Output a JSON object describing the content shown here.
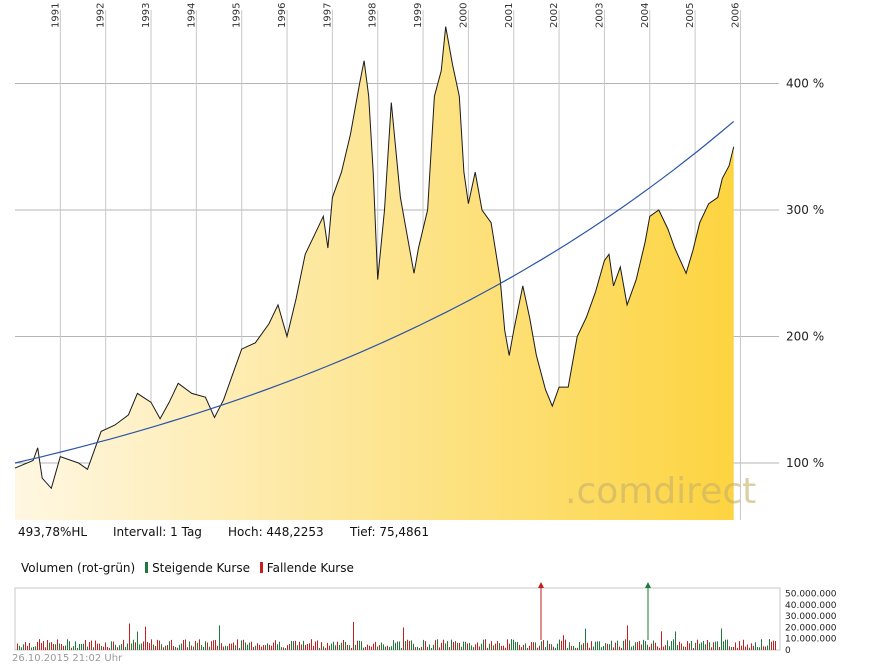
{
  "chart_data": [
    {
      "type": "area",
      "years": [
        "1991",
        "1992",
        "1993",
        "1994",
        "1995",
        "1996",
        "1997",
        "1998",
        "1999",
        "2000",
        "2001",
        "2002",
        "2003",
        "2004",
        "2005",
        "2006"
      ],
      "ytick_labels": [
        "100 %",
        "200 %",
        "300 %",
        "400 %"
      ],
      "ylim": [
        60,
        450
      ],
      "points": [
        [
          1990.0,
          96
        ],
        [
          1990.4,
          102
        ],
        [
          1990.5,
          112
        ],
        [
          1990.6,
          88
        ],
        [
          1990.8,
          80
        ],
        [
          1991.0,
          105
        ],
        [
          1991.4,
          100
        ],
        [
          1991.6,
          95
        ],
        [
          1991.9,
          125
        ],
        [
          1992.2,
          130
        ],
        [
          1992.5,
          138
        ],
        [
          1992.7,
          155
        ],
        [
          1993.0,
          148
        ],
        [
          1993.2,
          135
        ],
        [
          1993.4,
          148
        ],
        [
          1993.6,
          163
        ],
        [
          1993.9,
          155
        ],
        [
          1994.2,
          152
        ],
        [
          1994.4,
          136
        ],
        [
          1994.6,
          150
        ],
        [
          1994.8,
          170
        ],
        [
          1995.0,
          190
        ],
        [
          1995.3,
          195
        ],
        [
          1995.6,
          210
        ],
        [
          1995.8,
          225
        ],
        [
          1996.0,
          200
        ],
        [
          1996.2,
          230
        ],
        [
          1996.4,
          265
        ],
        [
          1996.6,
          280
        ],
        [
          1996.8,
          295
        ],
        [
          1996.9,
          270
        ],
        [
          1997.0,
          310
        ],
        [
          1997.2,
          330
        ],
        [
          1997.4,
          360
        ],
        [
          1997.6,
          400
        ],
        [
          1997.7,
          418
        ],
        [
          1997.8,
          390
        ],
        [
          1997.9,
          330
        ],
        [
          1998.0,
          245
        ],
        [
          1998.15,
          300
        ],
        [
          1998.3,
          385
        ],
        [
          1998.5,
          310
        ],
        [
          1998.6,
          290
        ],
        [
          1998.8,
          250
        ],
        [
          1998.9,
          270
        ],
        [
          1999.1,
          300
        ],
        [
          1999.25,
          390
        ],
        [
          1999.4,
          410
        ],
        [
          1999.5,
          445
        ],
        [
          1999.65,
          415
        ],
        [
          1999.8,
          390
        ],
        [
          1999.9,
          330
        ],
        [
          2000.0,
          305
        ],
        [
          2000.15,
          330
        ],
        [
          2000.3,
          300
        ],
        [
          2000.5,
          290
        ],
        [
          2000.7,
          245
        ],
        [
          2000.8,
          205
        ],
        [
          2000.9,
          185
        ],
        [
          2001.0,
          205
        ],
        [
          2001.2,
          240
        ],
        [
          2001.35,
          215
        ],
        [
          2001.5,
          185
        ],
        [
          2001.7,
          158
        ],
        [
          2001.85,
          145
        ],
        [
          2002.0,
          160
        ],
        [
          2002.2,
          160
        ],
        [
          2002.4,
          200
        ],
        [
          2002.6,
          215
        ],
        [
          2002.8,
          235
        ],
        [
          2003.0,
          260
        ],
        [
          2003.1,
          265
        ],
        [
          2003.2,
          240
        ],
        [
          2003.35,
          255
        ],
        [
          2003.5,
          225
        ],
        [
          2003.7,
          245
        ],
        [
          2003.9,
          275
        ],
        [
          2004.0,
          295
        ],
        [
          2004.2,
          300
        ],
        [
          2004.4,
          285
        ],
        [
          2004.55,
          270
        ],
        [
          2004.7,
          258
        ],
        [
          2004.8,
          250
        ],
        [
          2004.95,
          268
        ],
        [
          2005.1,
          290
        ],
        [
          2005.3,
          305
        ],
        [
          2005.5,
          310
        ],
        [
          2005.6,
          325
        ],
        [
          2005.75,
          335
        ],
        [
          2005.85,
          350
        ]
      ],
      "trend": [
        [
          1990.0,
          100
        ],
        [
          2005.85,
          370
        ]
      ],
      "stats": {
        "hl": "493,78%HL",
        "interval": "Intervall: 1 Tag",
        "high": "Hoch: 448,2253",
        "low": "Tief: 75,4861"
      },
      "watermark": ".comdirect"
    },
    {
      "type": "bar",
      "title": "Volumen (rot-grün)",
      "legend": [
        "Steigende Kurse",
        "Fallende Kurse"
      ],
      "ytick_labels": [
        "0",
        "10.000.000",
        "20.000.000",
        "30.000.000",
        "40.000.000",
        "50.000.000"
      ],
      "ylim": [
        0,
        55000000
      ],
      "colors": {
        "up": "#1f7a3a",
        "down": "#c41e1e"
      }
    }
  ],
  "footer": {
    "timestamp": "26.10.2015 21:02 Uhr"
  }
}
